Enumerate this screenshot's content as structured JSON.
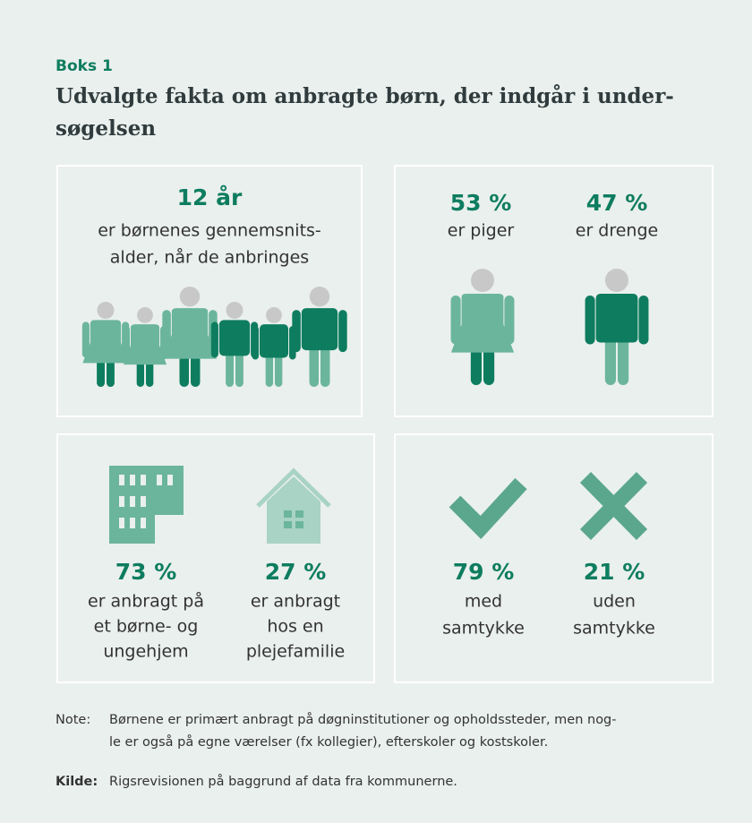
{
  "header": {
    "label": "Boks 1",
    "title": [
      "Udvalgte fakta om anbragte børn, der indgår i under-",
      "søgelsen"
    ]
  },
  "panels": {
    "age": {
      "value": "12 år",
      "text": [
        "er børnenes gennemsnits-",
        "alder, når de anbringes"
      ]
    },
    "gender": [
      {
        "value": "53 %",
        "text": [
          "er piger"
        ]
      },
      {
        "value": "47 %",
        "text": [
          "er drenge"
        ]
      }
    ],
    "placement": [
      {
        "value": "73 %",
        "text": [
          "er anbragt på",
          "et børne- og",
          "ungehjem"
        ]
      },
      {
        "value": "27 %",
        "text": [
          "er anbragt",
          "hos en",
          "plejefamilie"
        ]
      }
    ],
    "consent": [
      {
        "value": "79 %",
        "text": [
          "med",
          "samtykke"
        ]
      },
      {
        "value": "21 %",
        "text": [
          "uden",
          "samtykke"
        ]
      }
    ]
  },
  "note": {
    "label": "Note:",
    "lines": [
      "Børnene er primært anbragt på døgninstitutioner og opholdssteder, men nog-",
      "le er også på egne værelser (fx kollegier), efterskoler og kostskoler."
    ]
  },
  "source": {
    "label": "Kilde:",
    "text": "Rigsrevisionen på baggrund af data fra kommunerne."
  }
}
